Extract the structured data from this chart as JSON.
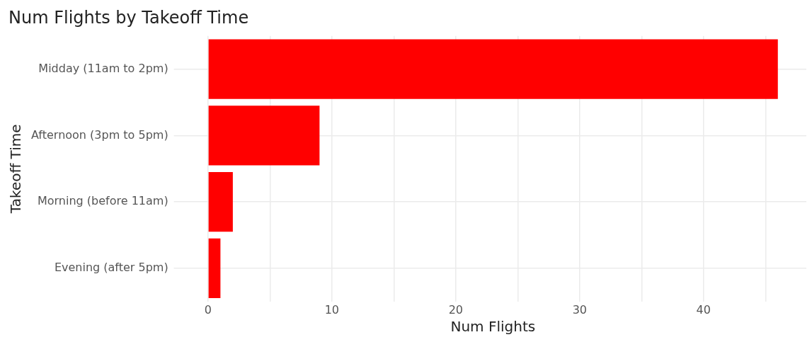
{
  "chart_data": {
    "type": "bar",
    "orientation": "horizontal",
    "title": "Num Flights by Takeoff Time",
    "xlabel": "Num Flights",
    "ylabel": "Takeoff Time",
    "categories": [
      "Midday (11am to 2pm)",
      "Afternoon (3pm to 5pm)",
      "Morning (before 11am)",
      "Evening (after 5pm)"
    ],
    "values": [
      46,
      9,
      2,
      1
    ],
    "color": "#ff0000",
    "xlim": [
      -2.3,
      48.3
    ],
    "xticks": [
      0,
      {
        "value": 5,
        "label": null
      },
      10,
      {
        "value": 15,
        "label": null
      },
      20,
      {
        "value": 25,
        "label": null
      },
      30,
      {
        "value": 35,
        "label": null
      },
      40,
      {
        "value": 45,
        "label": null
      }
    ],
    "grid": true,
    "legend": false
  }
}
